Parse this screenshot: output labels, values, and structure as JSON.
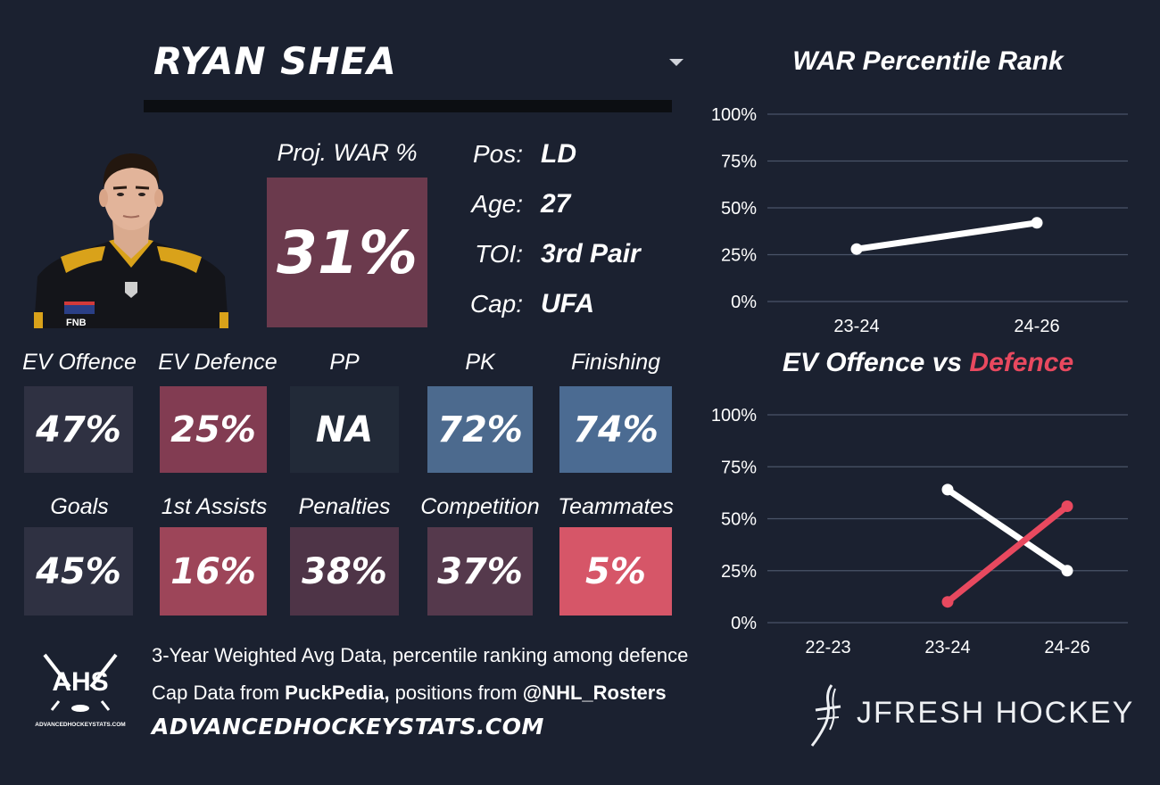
{
  "player": {
    "name": "RYAN SHEA",
    "proj_war_label": "Proj. WAR %",
    "proj_war_value": "31%",
    "proj_war_color": "#6b3a4d",
    "info": [
      {
        "key": "Pos:",
        "value": "LD"
      },
      {
        "key": "Age:",
        "value": "27"
      },
      {
        "key": "TOI:",
        "value": "3rd Pair"
      },
      {
        "key": "Cap:",
        "value": "UFA"
      }
    ]
  },
  "stats": {
    "row1": [
      {
        "label": "EV Offence",
        "value": "47%",
        "color": "#2f3142"
      },
      {
        "label": "EV Defence",
        "value": "25%",
        "color": "#823c52"
      },
      {
        "label": "PP",
        "value": "NA",
        "color": "#222a38"
      },
      {
        "label": "PK",
        "value": "72%",
        "color": "#4c6a8e"
      },
      {
        "label": "Finishing",
        "value": "74%",
        "color": "#4b6b92"
      }
    ],
    "row2": [
      {
        "label": "Goals",
        "value": "45%",
        "color": "#2f3142"
      },
      {
        "label": "1st Assists",
        "value": "16%",
        "color": "#9d4559"
      },
      {
        "label": "Penalties",
        "value": "38%",
        "color": "#4e3447"
      },
      {
        "label": "Competition",
        "value": "37%",
        "color": "#55394c"
      },
      {
        "label": "Teammates",
        "value": "5%",
        "color": "#d65668"
      }
    ]
  },
  "footer": {
    "line1": "3-Year Weighted Avg Data, percentile ranking among defence",
    "line2_prefix": "Cap Data from ",
    "line2_source1": "PuckPedia,",
    "line2_middle": " positions from ",
    "line2_source2": "@NHL_Rosters",
    "site": "ADVANCEDHOCKEYSTATS.COM",
    "ahs_logo_text": "AHS",
    "ahs_logo_subtext": "ADVANCEDHOCKEYSTATS.COM",
    "brand": "JFRESH HOCKEY"
  },
  "chart_data": [
    {
      "type": "line",
      "title": "WAR Percentile Rank",
      "x": [
        "23-24",
        "24-26"
      ],
      "series": [
        {
          "values": [
            28,
            42
          ],
          "color": "#ffffff"
        }
      ],
      "ylim": [
        0,
        100
      ],
      "yticks": [
        "0%",
        "25%",
        "50%",
        "75%",
        "100%"
      ],
      "grid": true
    },
    {
      "type": "line",
      "title_part1": "EV Offence vs ",
      "title_part2": "Defence",
      "title_part2_color": "#e8495f",
      "x": [
        "22-23",
        "23-24",
        "24-26"
      ],
      "series": [
        {
          "values": [
            null,
            64,
            25
          ],
          "color": "#ffffff"
        },
        {
          "values": [
            null,
            10,
            56
          ],
          "color": "#e8495f"
        }
      ],
      "ylim": [
        0,
        100
      ],
      "yticks": [
        "0%",
        "25%",
        "50%",
        "75%",
        "100%"
      ],
      "grid": true
    }
  ]
}
